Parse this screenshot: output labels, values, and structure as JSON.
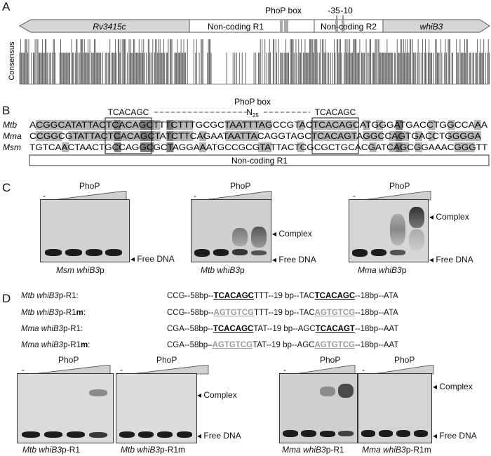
{
  "panelA": {
    "letter": "A",
    "genes": {
      "left": "Rv3415c",
      "right": "whiB3"
    },
    "regions": {
      "r1": "Non-coding R1",
      "r2": "Non-coding R2"
    },
    "markers": {
      "phop_box": "PhoP box",
      "minus35": "-35",
      "minus10": "-10"
    },
    "track_label": "Consensus"
  },
  "panelB": {
    "letter": "B",
    "title": "PhoP box",
    "motif_left": "TCACAGC",
    "motif_right": "TCACAGC",
    "spacer_label": "N",
    "spacer_sub": "25",
    "rows": [
      {
        "species": "Mtb",
        "seq": "ACGGCATATTACTCACAGCTTTCTTTGCGCTAATTTAGCCGTACTCACAGCATGGGATGACCTGGCCAAA"
      },
      {
        "species": "Mma",
        "seq": "CCGGCGTATTACTCACAGCTATCTTCAGAATAATTACAGGTAGCTCACAGTAGGCCAGTGACCTGGGGA"
      },
      {
        "species": "Msm",
        "seq": "TGTCAACTAACTGCCAGGCGCTAGGAAATGCCGCGTATTACTCGCGCTGCACGATCAGCGGAAACGGGTT"
      }
    ],
    "region_label": "Non-coding R1"
  },
  "panelC": {
    "letter": "C",
    "protein": "PhoP",
    "minus": "-",
    "complex": "Complex",
    "free": "Free DNA",
    "gels": [
      {
        "name": "Msm",
        "suffix": " whiB3",
        "tail": "p"
      },
      {
        "name": "Mtb",
        "suffix": " whiB3",
        "tail": "p"
      },
      {
        "name": "Mma",
        "suffix": " whiB3",
        "tail": "p"
      }
    ]
  },
  "panelD": {
    "letter": "D",
    "seqs": [
      {
        "label_a": "Mtb whiB3",
        "label_b": "p-R1",
        "label_m": "",
        "p1": "CCG--58bp--",
        "box1": "TCACAGC",
        "p2": "TTT--19 bp--TAC",
        "box2": "TCACAGC",
        "p3": "--18bp--ATA",
        "mut": false
      },
      {
        "label_a": "Mtb whiB3",
        "label_b": "p-R1",
        "label_m": "m",
        "p1": "CCG--58bp--",
        "box1": "AGTGTCG",
        "p2": "TTT--19 bp--TAC",
        "box2": "AGTGTCG",
        "p3": "--18bp--ATA",
        "mut": true
      },
      {
        "label_a": "Mma whiB3",
        "label_b": "p-R1",
        "label_m": "",
        "p1": "CGA--58bp--",
        "box1": "TCACAGC",
        "p2": "TAT--19 bp--AGC",
        "box2": "TCACAGT",
        "p3": "--18bp--AAT",
        "mut": false
      },
      {
        "label_a": "Mma whiB3",
        "label_b": "p-R1",
        "label_m": "m",
        "p1": "CGA--58bp–",
        "box1": "AGTGTCG",
        "p2": "TAT--19 bp--AGC",
        "box2": "AGTGTCG",
        "p3": "--18bp--AAT",
        "mut": true
      }
    ],
    "protein": "PhoP",
    "minus": "-",
    "complex": "Complex",
    "free": "Free DNA",
    "gel_labels": [
      {
        "a": "Mtb",
        "b": " whiB3",
        "c": "p-R1"
      },
      {
        "a": "Mtb",
        "b": " whiB3",
        "c": "p-R1m"
      },
      {
        "a": "Mma",
        "b": " whiB3",
        "c": "p-R1"
      },
      {
        "a": "Mma",
        "b": " whiB3",
        "c": "p-R1m"
      }
    ]
  }
}
